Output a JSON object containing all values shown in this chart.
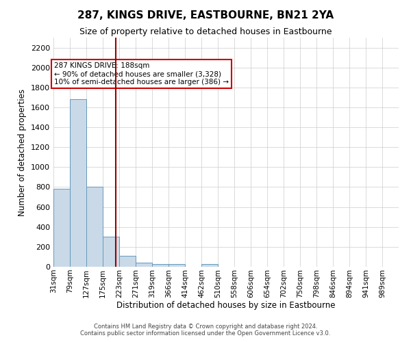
{
  "title": "287, KINGS DRIVE, EASTBOURNE, BN21 2YA",
  "subtitle": "Size of property relative to detached houses in Eastbourne",
  "xlabel": "Distribution of detached houses by size in Eastbourne",
  "ylabel": "Number of detached properties",
  "bin_labels": [
    "31sqm",
    "79sqm",
    "127sqm",
    "175sqm",
    "223sqm",
    "271sqm",
    "319sqm",
    "366sqm",
    "414sqm",
    "462sqm",
    "510sqm",
    "558sqm",
    "606sqm",
    "654sqm",
    "702sqm",
    "750sqm",
    "798sqm",
    "846sqm",
    "894sqm",
    "941sqm",
    "989sqm"
  ],
  "bar_values": [
    780,
    1680,
    800,
    300,
    110,
    40,
    28,
    28,
    0,
    28,
    0,
    0,
    0,
    0,
    0,
    0,
    0,
    0,
    0,
    0,
    0
  ],
  "bar_color": "#c9d9e8",
  "bar_edge_color": "#6699bb",
  "grid_color": "#cccccc",
  "background_color": "#ffffff",
  "annotation_text_line1": "287 KINGS DRIVE: 188sqm",
  "annotation_text_line2": "← 90% of detached houses are smaller (3,328)",
  "annotation_text_line3": "10% of semi-detached houses are larger (386) →",
  "annotation_box_color": "#ffffff",
  "annotation_box_edge_color": "#cc0000",
  "vline_color": "#990000",
  "ylim": [
    0,
    2300
  ],
  "yticks": [
    0,
    200,
    400,
    600,
    800,
    1000,
    1200,
    1400,
    1600,
    1800,
    2000,
    2200
  ],
  "footer_line1": "Contains HM Land Registry data © Crown copyright and database right 2024.",
  "footer_line2": "Contains public sector information licensed under the Open Government Licence v3.0.",
  "n_bins": 21,
  "bin_width": 48
}
